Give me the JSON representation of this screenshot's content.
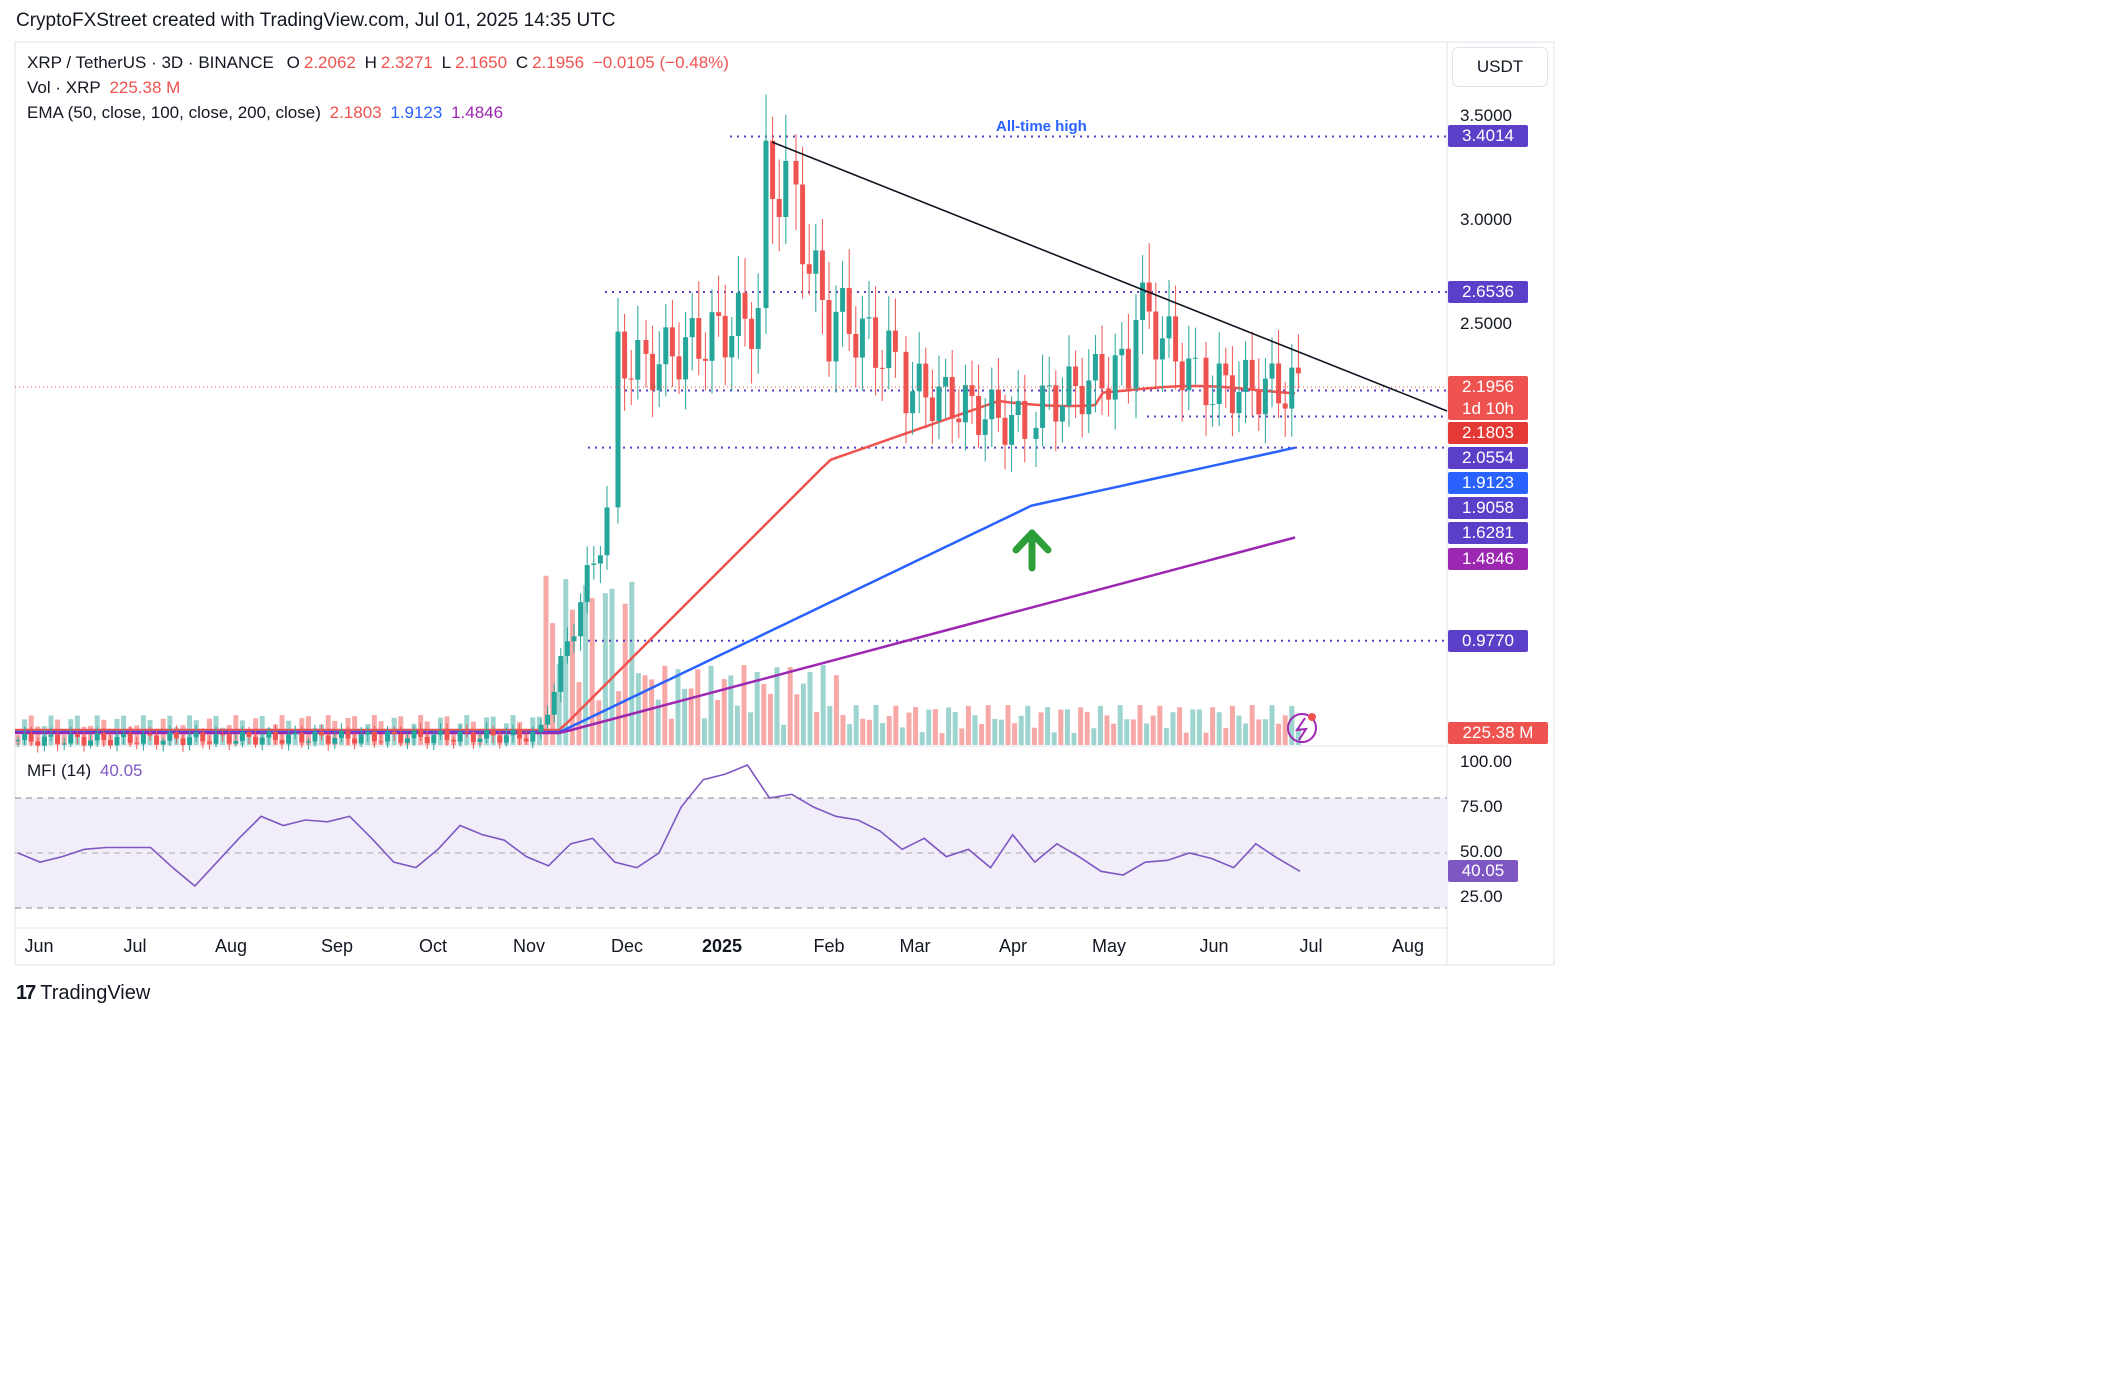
{
  "header": {
    "credit": "CryptoFXStreet created with TradingView.com, Jul 01, 2025 14:35 UTC"
  },
  "legend": {
    "symbol": "XRP / TetherUS · 3D · BINANCE",
    "open_label": "O",
    "open": "2.2062",
    "high_label": "H",
    "high": "2.3271",
    "low_label": "L",
    "low": "2.1650",
    "close_label": "C",
    "close": "2.1956",
    "change": "−0.0105 (−0.48%)",
    "vol_label": "Vol · XRP",
    "vol": "225.38 M",
    "ema_label": "EMA (50, close, 100, close, 200, close)",
    "ema50": "2.1803",
    "ema100": "1.9123",
    "ema200": "1.4846"
  },
  "mfi": {
    "label": "MFI (14)",
    "value": "40.05"
  },
  "currency": "USDT",
  "price_axis": [
    "3.5000",
    "3.0000",
    "2.5000"
  ],
  "mfi_axis": [
    "100.00",
    "75.00",
    "50.00",
    "25.00"
  ],
  "annotations": {
    "ath_label": "All-time high"
  },
  "price_tags": [
    {
      "text": "3.4014",
      "color": "#5b3fc8"
    },
    {
      "text": "2.6536",
      "color": "#5b3fc8"
    },
    {
      "text": "2.1956",
      "color": "#ef5350"
    },
    {
      "text": "1d 10h",
      "color": "#ef5350"
    },
    {
      "text": "2.1803",
      "color": "#e53935"
    },
    {
      "text": "2.0554",
      "color": "#5b3fc8"
    },
    {
      "text": "1.9123",
      "color": "#2962ff"
    },
    {
      "text": "1.9058",
      "color": "#5b3fc8"
    },
    {
      "text": "1.6281",
      "color": "#5b3fc8"
    },
    {
      "text": "1.4846",
      "color": "#9c27b0"
    },
    {
      "text": "0.9770",
      "color": "#5b3fc8"
    },
    {
      "text": "225.38 M",
      "color": "#ef5350"
    },
    {
      "text": "40.05",
      "color": "#7e57c2"
    }
  ],
  "time_axis": [
    "Jun",
    "Jul",
    "Aug",
    "Sep",
    "Oct",
    "Nov",
    "Dec",
    "2025",
    "Feb",
    "Mar",
    "Apr",
    "May",
    "Jun",
    "Jul",
    "Aug"
  ],
  "footer": {
    "brand": "TradingView"
  },
  "chart_data": [
    {
      "type": "candlestick",
      "title": "XRP / TetherUS · 3D · BINANCE",
      "ylim": [
        0.85,
        3.65
      ],
      "x": [
        "2024-06",
        "2024-07",
        "2024-08",
        "2024-09",
        "2024-10",
        "2024-11",
        "2024-12",
        "2025-01",
        "2025-02",
        "2025-03",
        "2025-04",
        "2025-05",
        "2025-06",
        "2025-07",
        "2025-08"
      ],
      "candles_approx": [
        {
          "date": "2024-11-05",
          "open": 0.51,
          "close": 0.53
        },
        {
          "date": "2024-11-14",
          "open": 0.6,
          "close": 0.8
        },
        {
          "date": "2024-11-23",
          "open": 1.1,
          "close": 1.45
        },
        {
          "date": "2024-12-02",
          "open": 1.5,
          "close": 2.4
        },
        {
          "date": "2024-12-03",
          "open": 2.4,
          "close": 2.3
        },
        {
          "date": "2025-01-06",
          "open": 2.35,
          "close": 2.6
        },
        {
          "date": "2025-01-15",
          "open": 2.6,
          "close": 3.3
        },
        {
          "date": "2025-01-18",
          "open": 3.3,
          "close": 3.4
        },
        {
          "date": "2025-02-03",
          "open": 3.1,
          "close": 2.6
        },
        {
          "date": "2025-03-02",
          "open": 2.2,
          "close": 2.9
        },
        {
          "date": "2025-04-07",
          "open": 2.1,
          "close": 1.9
        },
        {
          "date": "2025-05-12",
          "open": 2.4,
          "close": 2.6
        },
        {
          "date": "2025-06-22",
          "open": 2.1,
          "close": 2.0
        },
        {
          "date": "2025-07-01",
          "open": 2.2062,
          "high": 2.3271,
          "low": 2.165,
          "close": 2.1956
        }
      ],
      "horizontal_levels": [
        3.4014,
        2.6536,
        2.1803,
        2.0554,
        1.9058,
        0.977
      ],
      "trendline": {
        "from": {
          "date": "2025-01-18",
          "price": 3.4014
        },
        "to": {
          "date": "2025-07-15",
          "price": 2.04
        }
      },
      "series": [
        {
          "name": "EMA 50",
          "color": "#ef5350",
          "last": 2.1803
        },
        {
          "name": "EMA 100",
          "color": "#2962ff",
          "last": 1.9123
        },
        {
          "name": "EMA 200",
          "color": "#9c27b0",
          "last": 1.4846
        }
      ]
    },
    {
      "type": "line",
      "title": "MFI (14)",
      "ylim": [
        0,
        100
      ],
      "bands": [
        80,
        50,
        20
      ],
      "last": 40.05
    }
  ]
}
